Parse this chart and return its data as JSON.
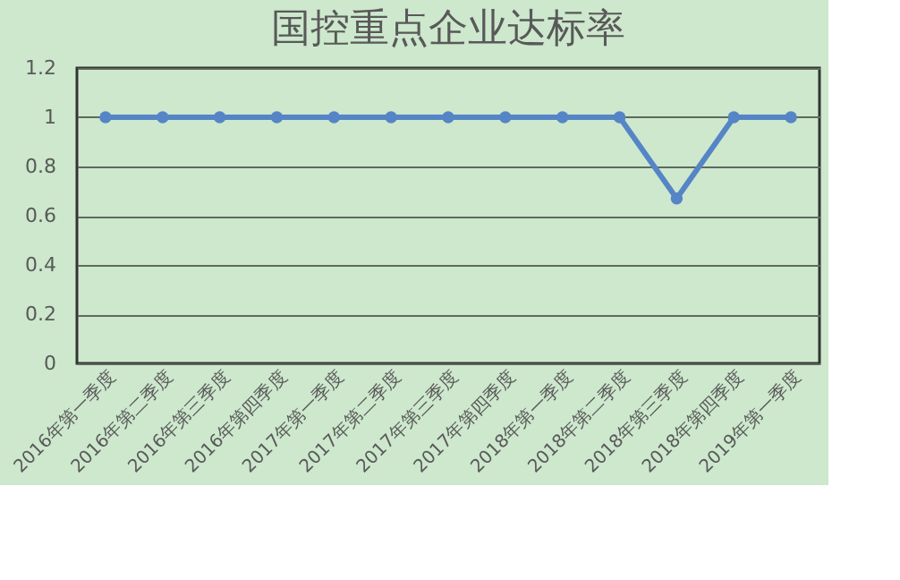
{
  "chart_data": {
    "type": "line",
    "title": "国控重点企业达标率",
    "categories": [
      "2016年第一季度",
      "2016年第二季度",
      "2016年第三季度",
      "2016年第四季度",
      "2017年第一季度",
      "2017年第二季度",
      "2017年第三季度",
      "2017年第四季度",
      "2018年第一季度",
      "2018年第二季度",
      "2018年第三季度",
      "2018年第四季度",
      "2019年第一季度"
    ],
    "series": [
      {
        "color": "#5585c6",
        "values": [
          1,
          1,
          1,
          1,
          1,
          1,
          1,
          1,
          1,
          1,
          0.67,
          1,
          1
        ]
      }
    ],
    "ylim": [
      0,
      1.2
    ],
    "yticks": [
      0,
      0.2,
      0.4,
      0.6,
      0.8,
      1,
      1.2
    ],
    "grid": "y",
    "marker": "circle",
    "line_style": "solid",
    "legend": false
  }
}
